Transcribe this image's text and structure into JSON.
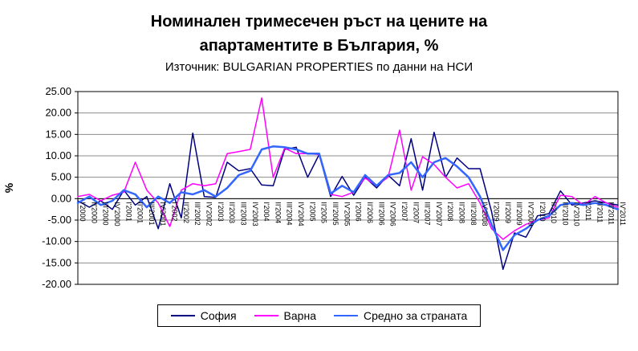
{
  "header": {
    "title_line1": "Номинален тримесечен ръст на цените на",
    "title_line2": "апартаментите в България, %",
    "subtitle": "Източник: BULGARIAN PROPERTIES по данни на НСИ"
  },
  "chart_data": {
    "type": "line",
    "title": "Номинален тримесечен ръст на цените на апартаментите в България, %",
    "subtitle": "Източник: BULGARIAN PROPERTIES по данни на НСИ",
    "xlabel": "",
    "ylabel": "%",
    "ylim": [
      -20,
      25
    ],
    "y_ticks": [
      25,
      20,
      15,
      10,
      5,
      0,
      -5,
      -10,
      -15,
      -20
    ],
    "y_tick_format": "0.00",
    "grid": true,
    "legend_position": "bottom",
    "categories": [
      "I'2000",
      "II'2000",
      "III'2000",
      "IV'2000",
      "I'2001",
      "II'2001",
      "III'2001",
      "IV'2001",
      "I'2002",
      "II'2002",
      "III'2002",
      "IV'2002",
      "I'2003",
      "II'2003",
      "III'2003",
      "IV'2003",
      "I'2004",
      "II'2004",
      "III'2004",
      "IV'2004",
      "I'2005",
      "II'2005",
      "III'2005",
      "IV'2005",
      "I'2006",
      "II'2006",
      "III'2006",
      "IV'2006",
      "I'2007",
      "II'2007",
      "III'2007",
      "IV'2007",
      "I'2008",
      "II'2008",
      "III'2008",
      "IV'2008",
      "I'2009",
      "II'2009",
      "III'2009",
      "IV'2009",
      "I'2010",
      "II'2010",
      "III'2010",
      "IV'2010",
      "I'2011",
      "II'2011",
      "III'2011",
      "IV'2011"
    ],
    "series": [
      {
        "name": "София",
        "color": "#000080",
        "width": 1.5,
        "values": [
          -0.5,
          -2.0,
          -0.5,
          -2.5,
          2.0,
          -1.5,
          0.5,
          -7.0,
          3.5,
          -4.5,
          15.3,
          0.5,
          0.3,
          8.5,
          6.5,
          7.0,
          3.2,
          3.0,
          11.5,
          12.0,
          5.0,
          10.3,
          0.5,
          5.2,
          0.8,
          5.0,
          2.5,
          5.5,
          3.0,
          14.0,
          2.0,
          15.5,
          5.0,
          9.5,
          7.0,
          7.0,
          -3.0,
          -16.5,
          -8.0,
          -9.0,
          -4.0,
          -3.5,
          1.8,
          -1.5,
          -1.0,
          -0.5,
          -1.0,
          -1.5
        ]
      },
      {
        "name": "Варна",
        "color": "#FF00FF",
        "width": 1.5,
        "values": [
          0.5,
          1.0,
          -0.5,
          0.8,
          1.5,
          8.5,
          2.0,
          -1.0,
          -6.5,
          2.0,
          3.5,
          3.0,
          3.5,
          10.5,
          11.0,
          11.5,
          23.5,
          5.0,
          11.8,
          10.5,
          10.5,
          10.3,
          1.0,
          0.5,
          1.5,
          4.8,
          3.0,
          5.0,
          16.0,
          2.0,
          9.8,
          8.0,
          5.0,
          2.5,
          3.5,
          -1.0,
          -7.0,
          -9.5,
          -7.5,
          -6.0,
          -5.0,
          -4.5,
          0.8,
          0.5,
          -1.5,
          0.5,
          -1.0,
          -2.0
        ]
      },
      {
        "name": "Средно за страната",
        "color": "#3366FF",
        "width": 2.5,
        "values": [
          -1.0,
          0.5,
          -1.5,
          -0.5,
          2.0,
          1.0,
          -2.0,
          0.5,
          -1.0,
          1.5,
          1.0,
          2.0,
          0.5,
          2.5,
          5.5,
          6.5,
          11.5,
          12.2,
          12.0,
          11.5,
          10.5,
          10.5,
          1.2,
          3.0,
          1.5,
          5.5,
          3.0,
          5.5,
          6.0,
          8.5,
          5.0,
          8.5,
          9.5,
          7.5,
          5.0,
          0.5,
          -6.0,
          -12.0,
          -8.5,
          -7.0,
          -5.0,
          -4.0,
          -1.5,
          -1.0,
          -1.5,
          -1.0,
          -1.5,
          -2.5
        ]
      }
    ]
  }
}
